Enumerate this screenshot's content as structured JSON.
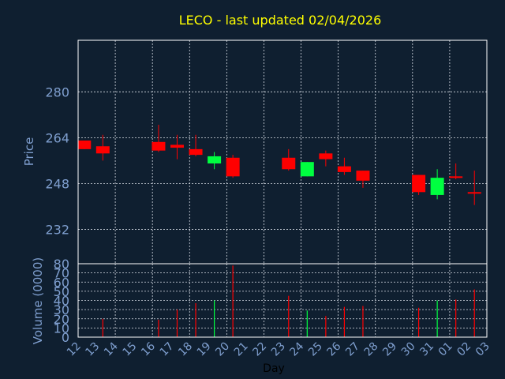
{
  "title": "LECO - last updated 02/04/2026",
  "colors": {
    "background": "#0f1f30",
    "title": "#ffff00",
    "axis_text": "#7f9fcf",
    "grid": "#d8dde6",
    "frame": "#ffffff",
    "up": "#00ff40",
    "down": "#ff0000"
  },
  "chart_data": [
    {
      "type": "candlestick",
      "ylabel": "Price",
      "ylim": [
        220,
        298
      ],
      "yticks": [
        232,
        248,
        264,
        280
      ],
      "grid": true,
      "days": [
        "12",
        "13",
        "14",
        "15",
        "16",
        "17",
        "18",
        "19",
        "20",
        "21",
        "22",
        "23",
        "24",
        "25",
        "26",
        "27",
        "28",
        "29",
        "30",
        "31",
        "01",
        "02",
        "03"
      ],
      "candles": [
        {
          "day": "12",
          "open": 263,
          "close": 260,
          "high": 263,
          "low": 260
        },
        {
          "day": "13",
          "open": 261,
          "close": 258.5,
          "high": 265,
          "low": 256
        },
        {
          "day": "16",
          "open": 262.5,
          "close": 259.5,
          "high": 268.5,
          "low": 259
        },
        {
          "day": "17",
          "open": 261.5,
          "close": 260.5,
          "high": 265,
          "low": 256.5
        },
        {
          "day": "18",
          "open": 260,
          "close": 258,
          "high": 265,
          "low": 257.5
        },
        {
          "day": "19",
          "open": 255,
          "close": 257.5,
          "high": 259,
          "low": 253
        },
        {
          "day": "20",
          "open": 257,
          "close": 250.5,
          "high": 258,
          "low": 250
        },
        {
          "day": "23",
          "open": 257,
          "close": 253,
          "high": 260,
          "low": 252.5
        },
        {
          "day": "24",
          "open": 250.5,
          "close": 255.5,
          "high": 255.5,
          "low": 250.5
        },
        {
          "day": "25",
          "open": 258.5,
          "close": 256.5,
          "high": 259.5,
          "low": 254
        },
        {
          "day": "26",
          "open": 254,
          "close": 252,
          "high": 257,
          "low": 251
        },
        {
          "day": "27",
          "open": 252.5,
          "close": 249,
          "high": 252.5,
          "low": 246.5
        },
        {
          "day": "30",
          "open": 251,
          "close": 245,
          "high": 251,
          "low": 244
        },
        {
          "day": "31",
          "open": 244,
          "close": 250,
          "high": 253,
          "low": 242.5
        },
        {
          "day": "01",
          "open": 250.5,
          "close": 250,
          "high": 255,
          "low": 249.5
        },
        {
          "day": "02",
          "open": 245,
          "close": 244.5,
          "high": 252.5,
          "low": 240.5
        }
      ]
    },
    {
      "type": "bar",
      "ylabel": "Volume (0000)",
      "xlabel": "Day",
      "ylim": [
        0,
        80
      ],
      "yticks": [
        0,
        10,
        20,
        30,
        40,
        50,
        60,
        70,
        80
      ],
      "categories": [
        "12",
        "13",
        "14",
        "15",
        "16",
        "17",
        "18",
        "19",
        "20",
        "21",
        "22",
        "23",
        "24",
        "25",
        "26",
        "27",
        "28",
        "29",
        "30",
        "31",
        "01",
        "02",
        "03"
      ],
      "values": [
        {
          "day": "13",
          "value": 20,
          "dir": "down"
        },
        {
          "day": "16",
          "value": 19,
          "dir": "down"
        },
        {
          "day": "17",
          "value": 30,
          "dir": "down"
        },
        {
          "day": "18",
          "value": 37,
          "dir": "down"
        },
        {
          "day": "19",
          "value": 40,
          "dir": "up"
        },
        {
          "day": "20",
          "value": 78,
          "dir": "down"
        },
        {
          "day": "23",
          "value": 45,
          "dir": "down"
        },
        {
          "day": "24",
          "value": 29,
          "dir": "up"
        },
        {
          "day": "25",
          "value": 23,
          "dir": "down"
        },
        {
          "day": "26",
          "value": 33,
          "dir": "down"
        },
        {
          "day": "27",
          "value": 34,
          "dir": "down"
        },
        {
          "day": "30",
          "value": 32,
          "dir": "down"
        },
        {
          "day": "31",
          "value": 40,
          "dir": "up"
        },
        {
          "day": "01",
          "value": 41,
          "dir": "down"
        },
        {
          "day": "02",
          "value": 52,
          "dir": "down"
        }
      ]
    }
  ]
}
